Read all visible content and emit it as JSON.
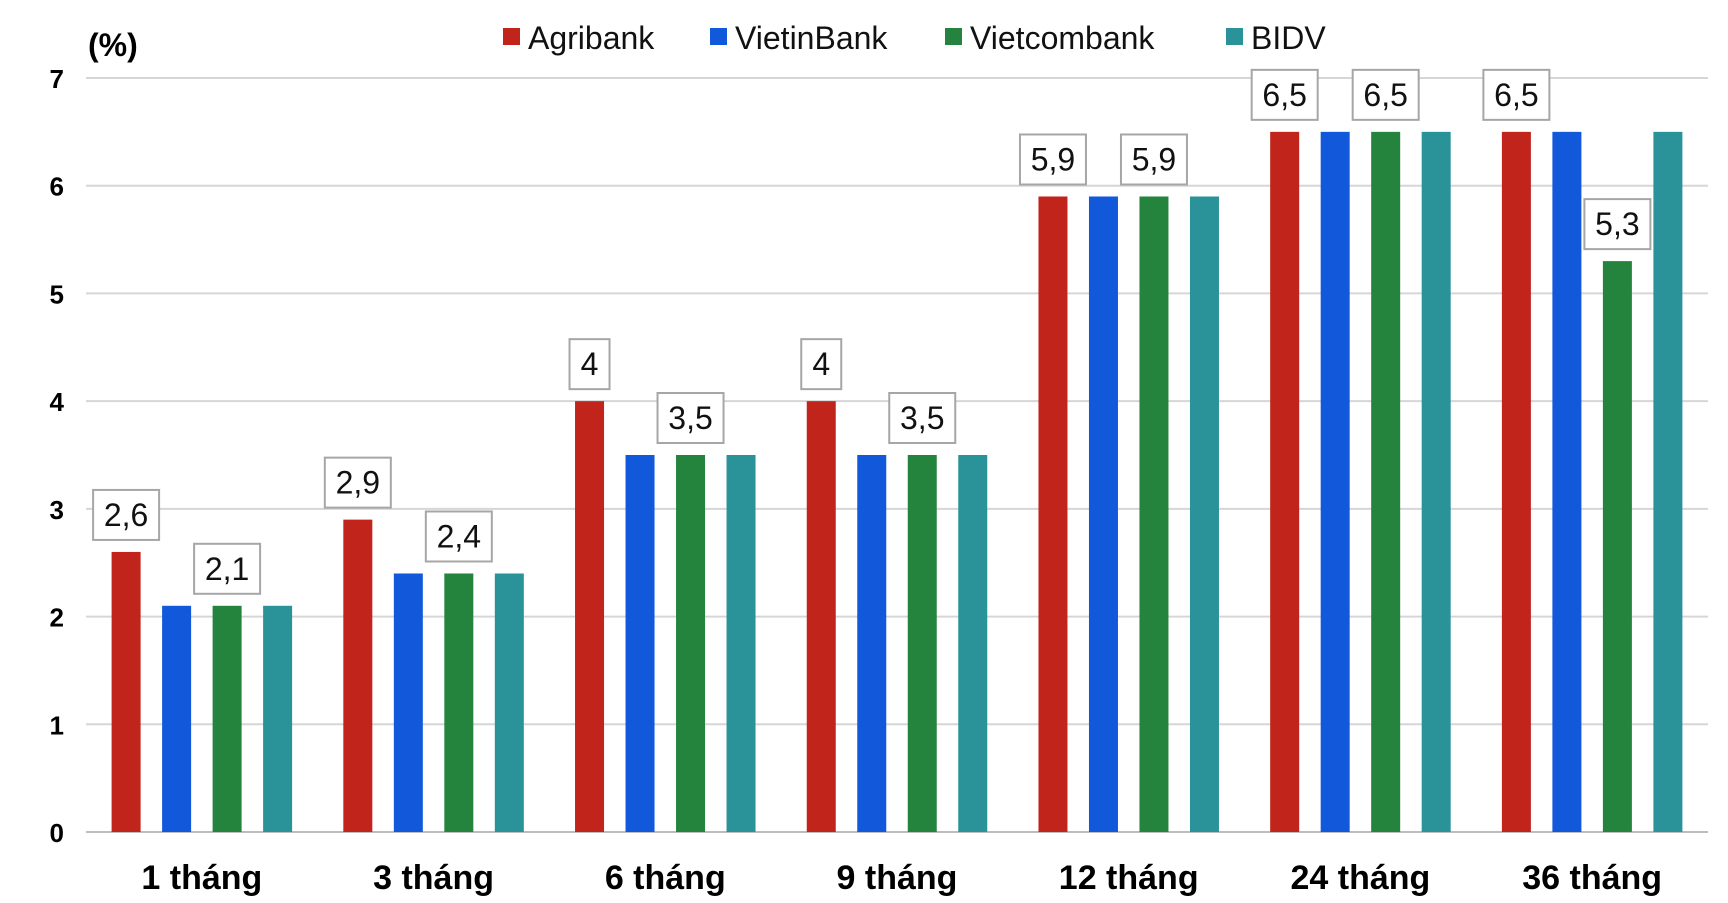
{
  "chart_data": {
    "type": "bar",
    "unit_label": "(%)",
    "categories": [
      "1 tháng",
      "3 tháng",
      "6 tháng",
      "9 tháng",
      "12 tháng",
      "24 tháng",
      "36 tháng"
    ],
    "series": [
      {
        "name": "Agribank",
        "color": "#c0241b",
        "values": [
          2.6,
          2.9,
          4,
          4,
          5.9,
          6.5,
          6.5
        ]
      },
      {
        "name": "VietinBank",
        "color": "#1158db",
        "values": [
          2.1,
          2.4,
          3.5,
          3.5,
          5.9,
          6.5,
          6.5
        ]
      },
      {
        "name": "Vietcombank",
        "color": "#24843d",
        "values": [
          2.1,
          2.4,
          3.5,
          3.5,
          5.9,
          6.5,
          5.3
        ]
      },
      {
        "name": "BIDV",
        "color": "#2a9399",
        "values": [
          2.1,
          2.4,
          3.5,
          3.5,
          5.9,
          6.5,
          6.5
        ]
      }
    ],
    "data_labels": [
      {
        "category": 0,
        "series": 0,
        "text": "2,6"
      },
      {
        "category": 0,
        "series": 2,
        "text": "2,1"
      },
      {
        "category": 1,
        "series": 0,
        "text": "2,9"
      },
      {
        "category": 1,
        "series": 2,
        "text": "2,4"
      },
      {
        "category": 2,
        "series": 0,
        "text": "4"
      },
      {
        "category": 2,
        "series": 2,
        "text": "3,5"
      },
      {
        "category": 3,
        "series": 0,
        "text": "4"
      },
      {
        "category": 3,
        "series": 2,
        "text": "3,5"
      },
      {
        "category": 4,
        "series": 0,
        "text": "5,9"
      },
      {
        "category": 4,
        "series": 2,
        "text": "5,9"
      },
      {
        "category": 5,
        "series": 0,
        "text": "6,5"
      },
      {
        "category": 5,
        "series": 2,
        "text": "6,5"
      },
      {
        "category": 6,
        "series": 0,
        "text": "6,5"
      },
      {
        "category": 6,
        "series": 2,
        "text": "5,3"
      }
    ],
    "yticks": [
      "0",
      "1",
      "2",
      "3",
      "4",
      "5",
      "6",
      "7"
    ],
    "ylim": [
      0,
      7
    ],
    "grid": true,
    "legend_position": "top"
  }
}
